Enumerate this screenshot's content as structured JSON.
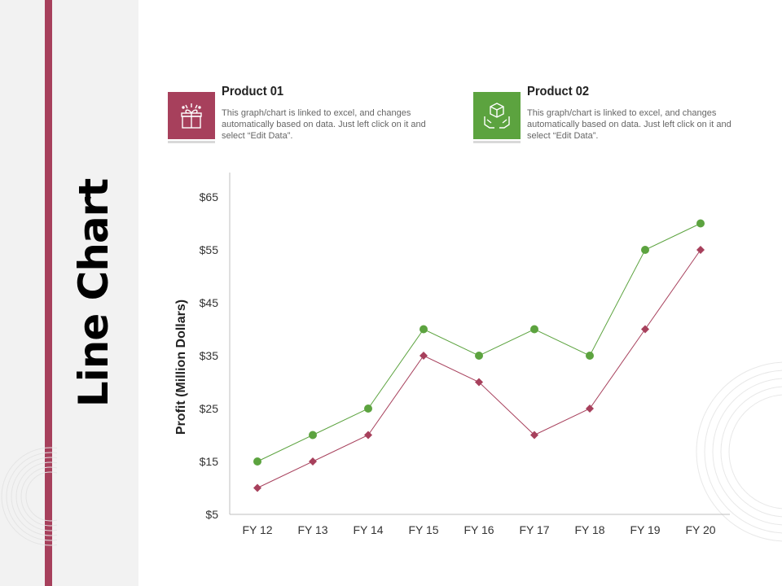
{
  "page": {
    "title": "Line Chart"
  },
  "colors": {
    "accent": "#a7405c",
    "product1": "#a7405c",
    "product2": "#5ca33f",
    "panel": "#f2f2f2"
  },
  "legend": [
    {
      "name": "Product 01",
      "desc": "This graph/chart is linked to excel, and changes automatically based on data. Just left click on it and select “Edit Data”.",
      "icon": "gift-box-icon"
    },
    {
      "name": "Product 02",
      "desc": "This graph/chart is linked to excel, and changes automatically based on data. Just left click on it and select “Edit Data”.",
      "icon": "package-hands-icon"
    }
  ],
  "chart_data": {
    "type": "line",
    "categories": [
      "FY 12",
      "FY 13",
      "FY 14",
      "FY 15",
      "FY 16",
      "FY 17",
      "FY 18",
      "FY 19",
      "FY 20"
    ],
    "series": [
      {
        "name": "Product 01",
        "values": [
          10,
          15,
          20,
          35,
          30,
          20,
          25,
          40,
          55
        ],
        "color": "#a7405c",
        "marker": "diamond"
      },
      {
        "name": "Product 02",
        "values": [
          15,
          20,
          25,
          40,
          35,
          40,
          35,
          55,
          60
        ],
        "color": "#5ca33f",
        "marker": "circle"
      }
    ],
    "ylabel": "Profit  (Million Dollars)",
    "yticks": [
      "$5",
      "$15",
      "$25",
      "$35",
      "$45",
      "$55",
      "$65"
    ],
    "ytick_values": [
      5,
      15,
      25,
      35,
      45,
      55,
      65
    ],
    "ylim": [
      5,
      65
    ],
    "grid": false
  }
}
